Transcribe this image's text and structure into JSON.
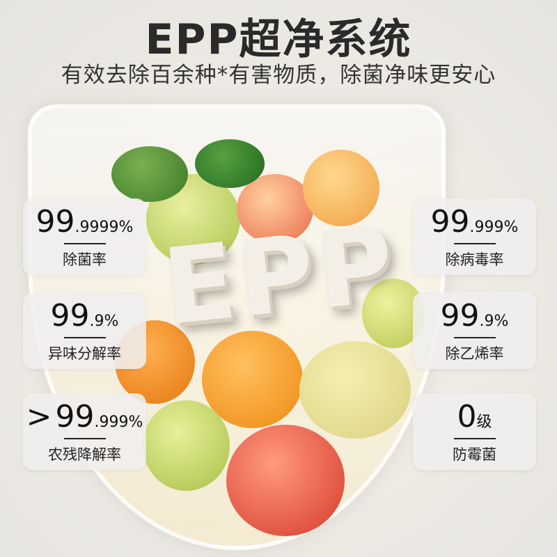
{
  "header": {
    "title": "EPP超净系统",
    "subtitle": "有效去除百余种*有害物质，除菌净味更安心"
  },
  "badge": {
    "text": "EPP"
  },
  "cards": [
    {
      "prefix": "",
      "big": "99",
      "small": ".9999%",
      "label": "除菌率"
    },
    {
      "prefix": "",
      "big": "99",
      "small": ".9%",
      "label": "异味分解率"
    },
    {
      "prefix": ">",
      "big": "99",
      "small": ".999%",
      "label": "农残降解率"
    },
    {
      "prefix": "",
      "big": "99",
      "small": ".999%",
      "label": "除病毒率"
    },
    {
      "prefix": "",
      "big": "99",
      "small": ".9%",
      "label": "除乙烯率"
    },
    {
      "prefix": "",
      "big": "0",
      "small": "级",
      "label": "防霉菌"
    }
  ]
}
